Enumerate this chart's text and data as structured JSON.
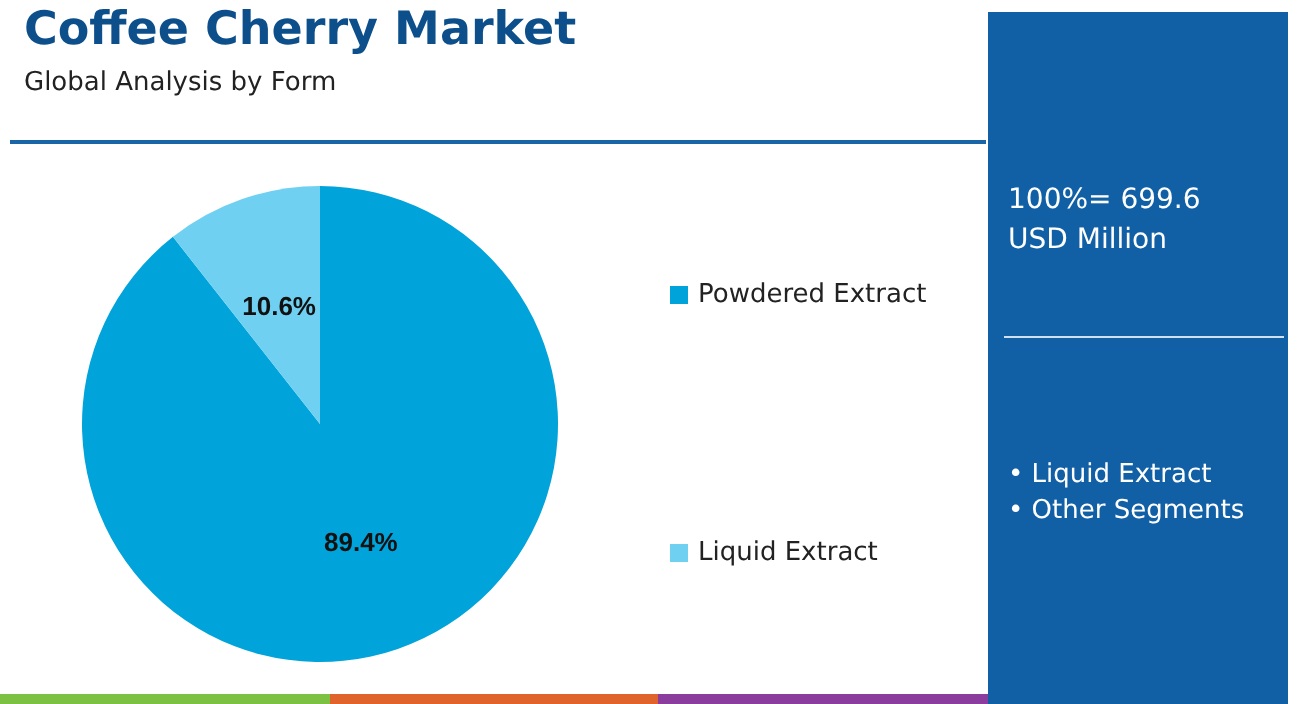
{
  "chart_data": {
    "type": "pie",
    "title": "Coffee Cherry Market",
    "subtitle": "Global Analysis by Form",
    "categories": [
      "Powdered Extract",
      "Liquid Extract"
    ],
    "values": [
      89.4,
      10.6
    ],
    "value_labels": [
      "89.4%",
      "10.6%"
    ],
    "colors": [
      "#00a3da",
      "#6fd0f2"
    ],
    "legend": "right",
    "annotations": [
      "100%= 699.6 USD Million",
      "• Liquid Extract",
      "• Other Segments"
    ]
  }
}
